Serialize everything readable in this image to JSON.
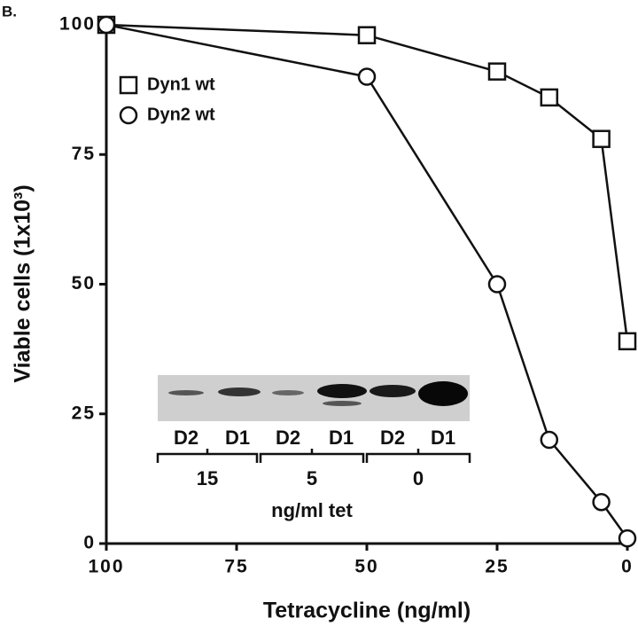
{
  "panel_label": "B.",
  "chart_data": {
    "type": "line",
    "xlabel": "Tetracycline (ng/ml)",
    "ylabel": "Viable cells (1x10³)",
    "xlim": [
      100,
      0
    ],
    "xticks": [
      100,
      75,
      50,
      25,
      0
    ],
    "ylim": [
      0,
      100
    ],
    "yticks": [
      0,
      25,
      50,
      75,
      100
    ],
    "series": [
      {
        "name": "Dyn1 wt",
        "marker": "square",
        "color": "#111111",
        "x": [
          100,
          50,
          25,
          15,
          5,
          0
        ],
        "values": [
          100,
          98,
          91,
          86,
          78,
          39
        ]
      },
      {
        "name": "Dyn2 wt",
        "marker": "circle",
        "color": "#111111",
        "x": [
          100,
          50,
          25,
          15,
          5,
          0
        ],
        "values": [
          100,
          90,
          50,
          20,
          8,
          1
        ]
      }
    ],
    "inset": {
      "lanes": [
        "D2",
        "D1",
        "D2",
        "D1",
        "D2",
        "D1"
      ],
      "groups": [
        15,
        5,
        0
      ],
      "caption": "ng/ml tet"
    }
  }
}
